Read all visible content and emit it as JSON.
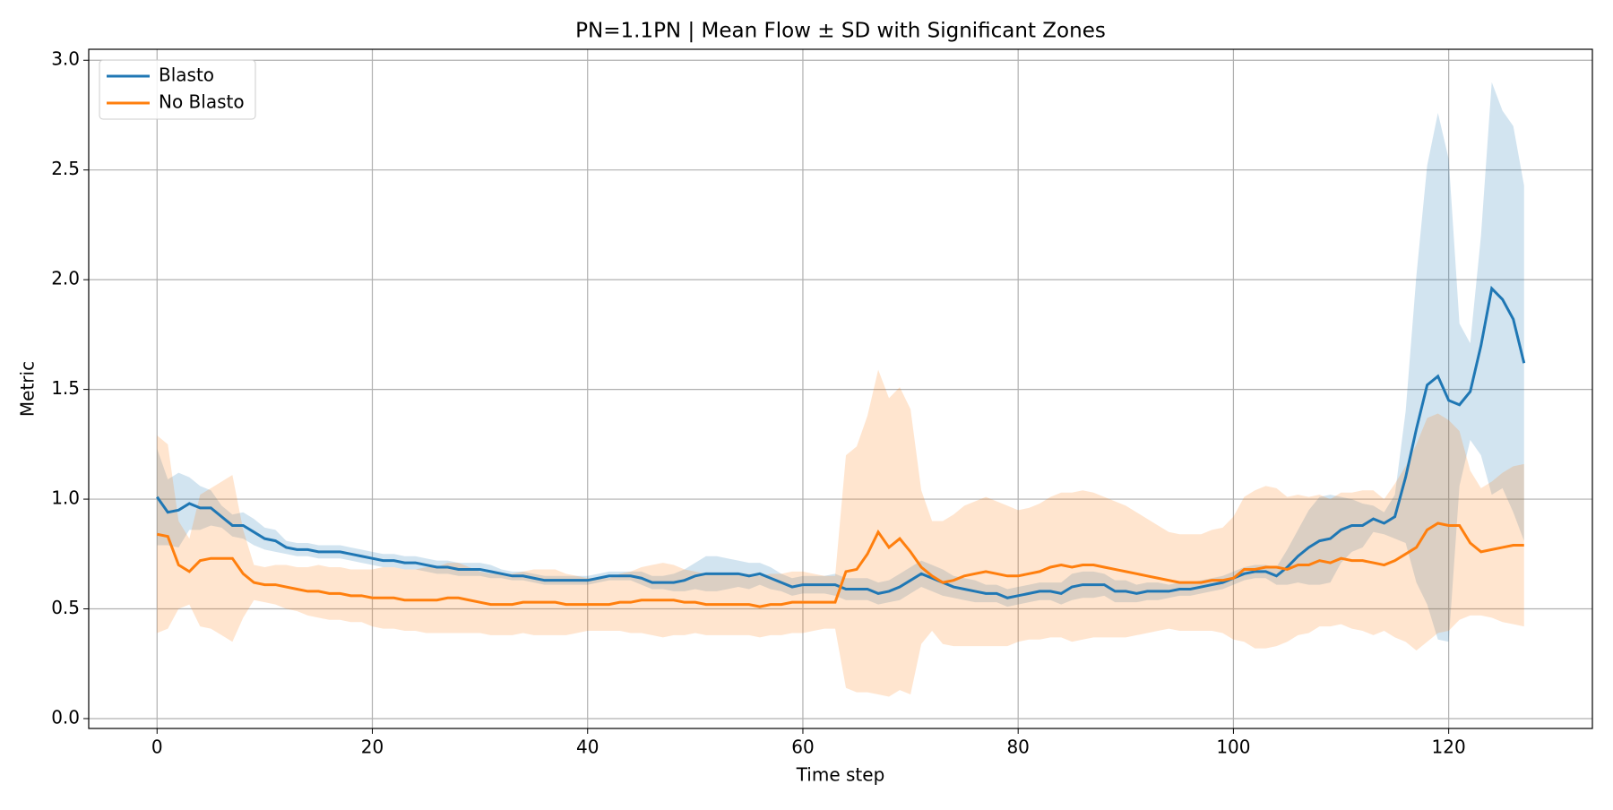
{
  "chart_data": {
    "type": "line_band",
    "title": "PN=1.1PN | Mean Flow ± SD with Significant Zones",
    "x_label": "Time step",
    "y_label": "Metric",
    "xlim": [
      -6.35,
      133.35
    ],
    "ylim": [
      -0.045,
      3.05
    ],
    "xticks": [
      0,
      20,
      40,
      60,
      80,
      100,
      120
    ],
    "yticks": [
      {
        "value": 0,
        "label": "0.0"
      },
      0.5,
      {
        "value": 1,
        "label": "1.0"
      },
      1.5,
      {
        "value": 2,
        "label": "2.0"
      },
      2.5,
      {
        "value": 3,
        "label": "3.0"
      }
    ],
    "grid": true,
    "legend": "upper left",
    "x": [
      0,
      1,
      2,
      3,
      4,
      5,
      6,
      7,
      8,
      9,
      10,
      11,
      12,
      13,
      14,
      15,
      16,
      17,
      18,
      19,
      20,
      21,
      22,
      23,
      24,
      25,
      26,
      27,
      28,
      29,
      30,
      31,
      32,
      33,
      34,
      35,
      36,
      37,
      38,
      39,
      40,
      41,
      42,
      43,
      44,
      45,
      46,
      47,
      48,
      49,
      50,
      51,
      52,
      53,
      54,
      55,
      56,
      57,
      58,
      59,
      60,
      61,
      62,
      63,
      64,
      65,
      66,
      67,
      68,
      69,
      70,
      71,
      72,
      73,
      74,
      75,
      76,
      77,
      78,
      79,
      80,
      81,
      82,
      83,
      84,
      85,
      86,
      87,
      88,
      89,
      90,
      91,
      92,
      93,
      94,
      95,
      96,
      97,
      98,
      99,
      100,
      101,
      102,
      103,
      104,
      105,
      106,
      107,
      108,
      109,
      110,
      111,
      112,
      113,
      114,
      115,
      116,
      117,
      118,
      119,
      120,
      121,
      122,
      123,
      124,
      125,
      126,
      127
    ],
    "series": [
      {
        "name": "Blasto",
        "color": "#1f77b4",
        "values": [
          1.01,
          0.94,
          0.95,
          0.98,
          0.96,
          0.96,
          0.92,
          0.88,
          0.88,
          0.85,
          0.82,
          0.81,
          0.78,
          0.77,
          0.77,
          0.76,
          0.76,
          0.76,
          0.75,
          0.74,
          0.73,
          0.72,
          0.72,
          0.71,
          0.71,
          0.7,
          0.69,
          0.69,
          0.68,
          0.68,
          0.68,
          0.67,
          0.66,
          0.65,
          0.65,
          0.64,
          0.63,
          0.63,
          0.63,
          0.63,
          0.63,
          0.64,
          0.65,
          0.65,
          0.65,
          0.64,
          0.62,
          0.62,
          0.62,
          0.63,
          0.65,
          0.66,
          0.66,
          0.66,
          0.66,
          0.65,
          0.66,
          0.64,
          0.62,
          0.6,
          0.61,
          0.61,
          0.61,
          0.61,
          0.59,
          0.59,
          0.59,
          0.57,
          0.58,
          0.6,
          0.63,
          0.66,
          0.64,
          0.62,
          0.6,
          0.59,
          0.58,
          0.57,
          0.57,
          0.55,
          0.56,
          0.57,
          0.58,
          0.58,
          0.57,
          0.6,
          0.61,
          0.61,
          0.61,
          0.58,
          0.58,
          0.57,
          0.58,
          0.58,
          0.58,
          0.59,
          0.59,
          0.6,
          0.61,
          0.62,
          0.64,
          0.66,
          0.67,
          0.67,
          0.65,
          0.69,
          0.74,
          0.78,
          0.81,
          0.82,
          0.86,
          0.88,
          0.88,
          0.91,
          0.89,
          0.92,
          1.1,
          1.32,
          1.52,
          1.56,
          1.45,
          1.43,
          1.49,
          1.7,
          1.96,
          1.91,
          1.82,
          1.62
        ],
        "sd": [
          0.22,
          0.15,
          0.17,
          0.12,
          0.1,
          0.08,
          0.05,
          0.05,
          0.06,
          0.06,
          0.05,
          0.05,
          0.03,
          0.03,
          0.03,
          0.03,
          0.03,
          0.03,
          0.03,
          0.03,
          0.03,
          0.03,
          0.03,
          0.03,
          0.03,
          0.03,
          0.03,
          0.03,
          0.03,
          0.03,
          0.03,
          0.03,
          0.02,
          0.02,
          0.02,
          0.02,
          0.02,
          0.02,
          0.02,
          0.02,
          0.02,
          0.02,
          0.02,
          0.02,
          0.02,
          0.03,
          0.03,
          0.03,
          0.04,
          0.05,
          0.06,
          0.08,
          0.08,
          0.07,
          0.06,
          0.06,
          0.05,
          0.05,
          0.04,
          0.04,
          0.04,
          0.04,
          0.04,
          0.05,
          0.05,
          0.05,
          0.05,
          0.05,
          0.05,
          0.06,
          0.06,
          0.06,
          0.06,
          0.06,
          0.05,
          0.05,
          0.05,
          0.04,
          0.04,
          0.04,
          0.04,
          0.04,
          0.04,
          0.04,
          0.05,
          0.06,
          0.06,
          0.06,
          0.05,
          0.05,
          0.05,
          0.04,
          0.04,
          0.04,
          0.03,
          0.03,
          0.03,
          0.03,
          0.03,
          0.03,
          0.03,
          0.03,
          0.03,
          0.03,
          0.04,
          0.08,
          0.12,
          0.17,
          0.2,
          0.2,
          0.15,
          0.12,
          0.1,
          0.06,
          0.05,
          0.1,
          0.3,
          0.7,
          1.0,
          1.2,
          1.1,
          0.37,
          0.22,
          0.5,
          0.94,
          0.86,
          0.88,
          0.81
        ]
      },
      {
        "name": "No Blasto",
        "color": "#ff7f0e",
        "values": [
          0.84,
          0.83,
          0.7,
          0.67,
          0.72,
          0.73,
          0.73,
          0.73,
          0.66,
          0.62,
          0.61,
          0.61,
          0.6,
          0.59,
          0.58,
          0.58,
          0.57,
          0.57,
          0.56,
          0.56,
          0.55,
          0.55,
          0.55,
          0.54,
          0.54,
          0.54,
          0.54,
          0.55,
          0.55,
          0.54,
          0.53,
          0.52,
          0.52,
          0.52,
          0.53,
          0.53,
          0.53,
          0.53,
          0.52,
          0.52,
          0.52,
          0.52,
          0.52,
          0.53,
          0.53,
          0.54,
          0.54,
          0.54,
          0.54,
          0.53,
          0.53,
          0.52,
          0.52,
          0.52,
          0.52,
          0.52,
          0.51,
          0.52,
          0.52,
          0.53,
          0.53,
          0.53,
          0.53,
          0.53,
          0.67,
          0.68,
          0.75,
          0.85,
          0.78,
          0.82,
          0.76,
          0.69,
          0.65,
          0.62,
          0.63,
          0.65,
          0.66,
          0.67,
          0.66,
          0.65,
          0.65,
          0.66,
          0.67,
          0.69,
          0.7,
          0.69,
          0.7,
          0.7,
          0.69,
          0.68,
          0.67,
          0.66,
          0.65,
          0.64,
          0.63,
          0.62,
          0.62,
          0.62,
          0.63,
          0.63,
          0.64,
          0.68,
          0.68,
          0.69,
          0.69,
          0.68,
          0.7,
          0.7,
          0.72,
          0.71,
          0.73,
          0.72,
          0.72,
          0.71,
          0.7,
          0.72,
          0.75,
          0.78,
          0.86,
          0.89,
          0.88,
          0.88,
          0.8,
          0.76,
          0.77,
          0.78,
          0.79,
          0.79
        ],
        "sd": [
          0.45,
          0.42,
          0.2,
          0.15,
          0.3,
          0.32,
          0.35,
          0.38,
          0.2,
          0.08,
          0.08,
          0.09,
          0.1,
          0.1,
          0.11,
          0.12,
          0.12,
          0.12,
          0.12,
          0.12,
          0.13,
          0.14,
          0.14,
          0.14,
          0.14,
          0.15,
          0.15,
          0.16,
          0.16,
          0.15,
          0.14,
          0.14,
          0.14,
          0.14,
          0.14,
          0.15,
          0.15,
          0.15,
          0.14,
          0.13,
          0.12,
          0.12,
          0.12,
          0.13,
          0.14,
          0.15,
          0.16,
          0.17,
          0.16,
          0.15,
          0.14,
          0.14,
          0.14,
          0.14,
          0.14,
          0.14,
          0.14,
          0.14,
          0.14,
          0.14,
          0.14,
          0.13,
          0.12,
          0.12,
          0.53,
          0.56,
          0.63,
          0.74,
          0.68,
          0.69,
          0.65,
          0.35,
          0.25,
          0.28,
          0.3,
          0.32,
          0.33,
          0.34,
          0.33,
          0.32,
          0.3,
          0.3,
          0.31,
          0.32,
          0.33,
          0.34,
          0.34,
          0.33,
          0.32,
          0.31,
          0.3,
          0.28,
          0.26,
          0.24,
          0.22,
          0.22,
          0.22,
          0.22,
          0.23,
          0.24,
          0.28,
          0.33,
          0.36,
          0.37,
          0.36,
          0.33,
          0.32,
          0.31,
          0.3,
          0.29,
          0.3,
          0.31,
          0.32,
          0.33,
          0.3,
          0.35,
          0.4,
          0.47,
          0.51,
          0.5,
          0.48,
          0.43,
          0.33,
          0.29,
          0.31,
          0.34,
          0.36,
          0.37
        ]
      }
    ]
  }
}
